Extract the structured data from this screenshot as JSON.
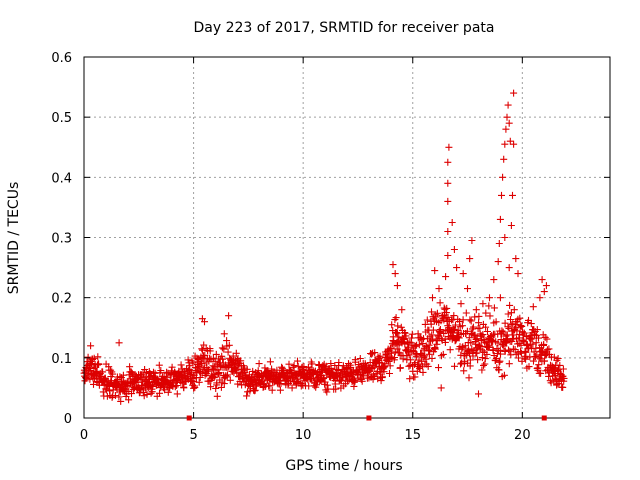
{
  "chart_data": {
    "type": "scatter",
    "title": "Day 223 of 2017, SRMTID for receiver pata",
    "xlabel": "GPS time / hours",
    "ylabel": "SRMTID / TECUs",
    "xlim": [
      0,
      24
    ],
    "ylim": [
      0,
      0.6
    ],
    "x_ticks": [
      0,
      5,
      10,
      15,
      20
    ],
    "x_tick_labels": [
      "0",
      "5",
      "10",
      "15",
      "20"
    ],
    "y_ticks": [
      0,
      0.1,
      0.2,
      0.3,
      0.4,
      0.5,
      0.6
    ],
    "y_tick_labels": [
      "0",
      "0.1",
      "0.2",
      "0.3",
      "0.4",
      "0.5",
      "0.6"
    ],
    "grid": true,
    "marker": "+",
    "color": "#dd0000",
    "baseline_markers_x": [
      4.8,
      13.0,
      21.0
    ],
    "series": [
      {
        "name": "SRMTID",
        "envelope": {
          "x": [
            0,
            0.5,
            1,
            1.5,
            2,
            3,
            4,
            4.5,
            5,
            5.5,
            6,
            6.5,
            7,
            7.5,
            8,
            9,
            10,
            11,
            12,
            13,
            13.8,
            14,
            14.5,
            15,
            15.5,
            16,
            16.5,
            17,
            17.5,
            18,
            18.5,
            19,
            19.5,
            20,
            20.5,
            21,
            21.5,
            21.9
          ],
          "center": [
            0.075,
            0.08,
            0.06,
            0.05,
            0.055,
            0.06,
            0.06,
            0.07,
            0.075,
            0.09,
            0.08,
            0.09,
            0.085,
            0.06,
            0.065,
            0.07,
            0.07,
            0.07,
            0.07,
            0.08,
            0.09,
            0.12,
            0.13,
            0.1,
            0.11,
            0.14,
            0.15,
            0.14,
            0.12,
            0.13,
            0.13,
            0.12,
            0.14,
            0.13,
            0.12,
            0.1,
            0.075,
            0.065
          ],
          "spread": [
            0.02,
            0.025,
            0.025,
            0.02,
            0.02,
            0.02,
            0.02,
            0.02,
            0.025,
            0.03,
            0.03,
            0.03,
            0.025,
            0.02,
            0.02,
            0.02,
            0.02,
            0.02,
            0.02,
            0.02,
            0.025,
            0.035,
            0.04,
            0.035,
            0.035,
            0.04,
            0.045,
            0.045,
            0.04,
            0.04,
            0.04,
            0.04,
            0.045,
            0.04,
            0.04,
            0.035,
            0.025,
            0.02
          ]
        },
        "spikes": [
          {
            "x": 0.3,
            "y": 0.12
          },
          {
            "x": 1.6,
            "y": 0.125
          },
          {
            "x": 5.4,
            "y": 0.165
          },
          {
            "x": 5.5,
            "y": 0.16
          },
          {
            "x": 6.6,
            "y": 0.17
          },
          {
            "x": 6.4,
            "y": 0.14
          },
          {
            "x": 14.1,
            "y": 0.255
          },
          {
            "x": 14.2,
            "y": 0.24
          },
          {
            "x": 14.3,
            "y": 0.22
          },
          {
            "x": 14.5,
            "y": 0.18
          },
          {
            "x": 16.0,
            "y": 0.245
          },
          {
            "x": 16.2,
            "y": 0.215
          },
          {
            "x": 16.5,
            "y": 0.235
          },
          {
            "x": 16.6,
            "y": 0.27
          },
          {
            "x": 16.6,
            "y": 0.31
          },
          {
            "x": 16.6,
            "y": 0.36
          },
          {
            "x": 16.6,
            "y": 0.39
          },
          {
            "x": 16.6,
            "y": 0.425
          },
          {
            "x": 16.65,
            "y": 0.45
          },
          {
            "x": 16.8,
            "y": 0.325
          },
          {
            "x": 16.9,
            "y": 0.28
          },
          {
            "x": 17.0,
            "y": 0.25
          },
          {
            "x": 17.3,
            "y": 0.24
          },
          {
            "x": 17.5,
            "y": 0.215
          },
          {
            "x": 17.6,
            "y": 0.265
          },
          {
            "x": 17.7,
            "y": 0.295
          },
          {
            "x": 17.2,
            "y": 0.19
          },
          {
            "x": 18.2,
            "y": 0.19
          },
          {
            "x": 18.5,
            "y": 0.2
          },
          {
            "x": 18.7,
            "y": 0.23
          },
          {
            "x": 18.9,
            "y": 0.26
          },
          {
            "x": 18.95,
            "y": 0.29
          },
          {
            "x": 19.0,
            "y": 0.33
          },
          {
            "x": 19.05,
            "y": 0.37
          },
          {
            "x": 19.1,
            "y": 0.4
          },
          {
            "x": 19.15,
            "y": 0.43
          },
          {
            "x": 19.2,
            "y": 0.455
          },
          {
            "x": 19.25,
            "y": 0.48
          },
          {
            "x": 19.3,
            "y": 0.5
          },
          {
            "x": 19.35,
            "y": 0.52
          },
          {
            "x": 19.4,
            "y": 0.49
          },
          {
            "x": 19.45,
            "y": 0.46
          },
          {
            "x": 19.6,
            "y": 0.54
          },
          {
            "x": 19.6,
            "y": 0.455
          },
          {
            "x": 19.55,
            "y": 0.37
          },
          {
            "x": 19.5,
            "y": 0.32
          },
          {
            "x": 19.7,
            "y": 0.265
          },
          {
            "x": 19.8,
            "y": 0.24
          },
          {
            "x": 19.2,
            "y": 0.3
          },
          {
            "x": 19.4,
            "y": 0.25
          },
          {
            "x": 19.0,
            "y": 0.2
          },
          {
            "x": 20.9,
            "y": 0.23
          },
          {
            "x": 21.0,
            "y": 0.21
          },
          {
            "x": 20.8,
            "y": 0.2
          },
          {
            "x": 21.1,
            "y": 0.22
          },
          {
            "x": 20.5,
            "y": 0.185
          },
          {
            "x": 15.9,
            "y": 0.2
          },
          {
            "x": 17.9,
            "y": 0.18
          },
          {
            "x": 18.0,
            "y": 0.04
          },
          {
            "x": 16.3,
            "y": 0.05
          }
        ]
      }
    ]
  }
}
